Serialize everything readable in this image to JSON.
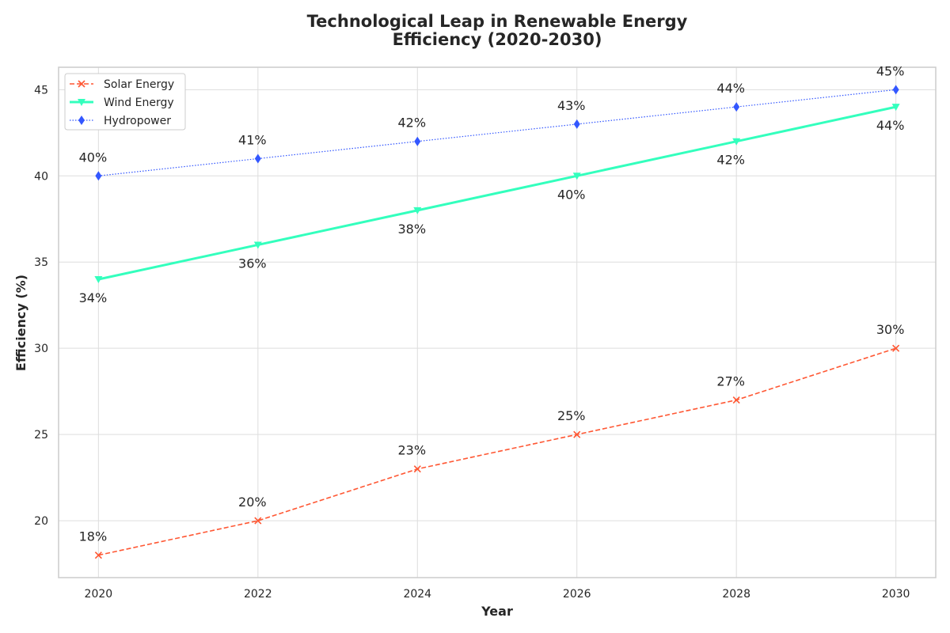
{
  "chart_data": {
    "type": "line",
    "title_lines": [
      "Technological Leap in Renewable Energy",
      "Efficiency (2020-2030)"
    ],
    "xlabel": "Year",
    "ylabel": "Efficiency (%)",
    "x": [
      2020,
      2022,
      2024,
      2026,
      2028,
      2030
    ],
    "xlim": [
      2019.5,
      2030.5
    ],
    "ylim": [
      16.7,
      46.3
    ],
    "xticks": [
      2020,
      2022,
      2024,
      2026,
      2028,
      2030
    ],
    "yticks": [
      20,
      25,
      30,
      35,
      40,
      45
    ],
    "grid": true,
    "legend_position": "top-left",
    "series": [
      {
        "name": "Solar Energy",
        "values": [
          18,
          20,
          23,
          25,
          27,
          30
        ],
        "labels": [
          "18%",
          "20%",
          "23%",
          "25%",
          "27%",
          "30%"
        ],
        "color": "#ff5733",
        "line_style": "dashed",
        "marker": "x",
        "label_position": "above"
      },
      {
        "name": "Wind Energy",
        "values": [
          34,
          36,
          38,
          40,
          42,
          44
        ],
        "labels": [
          "34%",
          "36%",
          "38%",
          "40%",
          "42%",
          "44%"
        ],
        "color": "#33ffbd",
        "line_style": "solid",
        "marker": "triangle-down",
        "label_position": "below"
      },
      {
        "name": "Hydropower",
        "values": [
          40,
          41,
          42,
          43,
          44,
          45
        ],
        "labels": [
          "40%",
          "41%",
          "42%",
          "43%",
          "44%",
          "45%"
        ],
        "color": "#3357ff",
        "line_style": "dotted",
        "marker": "diamond",
        "label_position": "above"
      }
    ]
  }
}
